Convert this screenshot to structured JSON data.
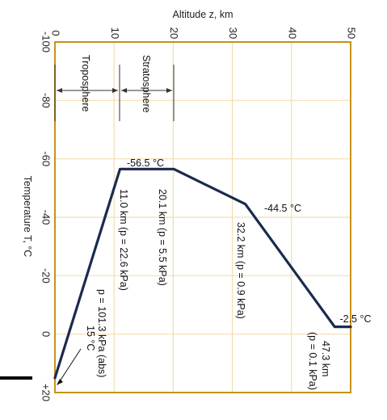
{
  "chart_data": {
    "type": "line",
    "xlabel": "Altitude z, km",
    "ylabel": "Temperature T, °C",
    "xlim": [
      0,
      50
    ],
    "ylim": [
      -100,
      20
    ],
    "x_ticks": [
      "0",
      "10",
      "20",
      "30",
      "40",
      "50"
    ],
    "y_ticks": [
      "-100",
      "-80",
      "-60",
      "-40",
      "-20",
      "0",
      "+20"
    ],
    "grid": true,
    "series": [
      {
        "x": [
          0,
          11.0,
          20.1,
          32.2,
          47.3,
          50
        ],
        "y": [
          15,
          -56.5,
          -56.5,
          -44.5,
          -2.5,
          -2.5
        ]
      }
    ],
    "layers": {
      "troposphere": "Troposphere",
      "stratosphere": "Stratosphere"
    },
    "annotations": {
      "temp_low": "-56.5 °C",
      "temp_mid": "-44.5 °C",
      "temp_high": "-2.5 °C",
      "z1": "11.0 km (p = 22.6 kPa)",
      "z2": "20.1 km (p = 5.5 kPa)",
      "z3": "32.2 km (p = 0.9 kPa)",
      "z4a": "47.3 km",
      "z4b": "(p = 0.1 kPa)",
      "sea_a": "p = 101.3 kPa (abs)",
      "sea_b": "15 °C"
    },
    "colors": {
      "line": "#1b2a4e",
      "frame": "#c8921a",
      "grid": "#f2deb0"
    }
  }
}
